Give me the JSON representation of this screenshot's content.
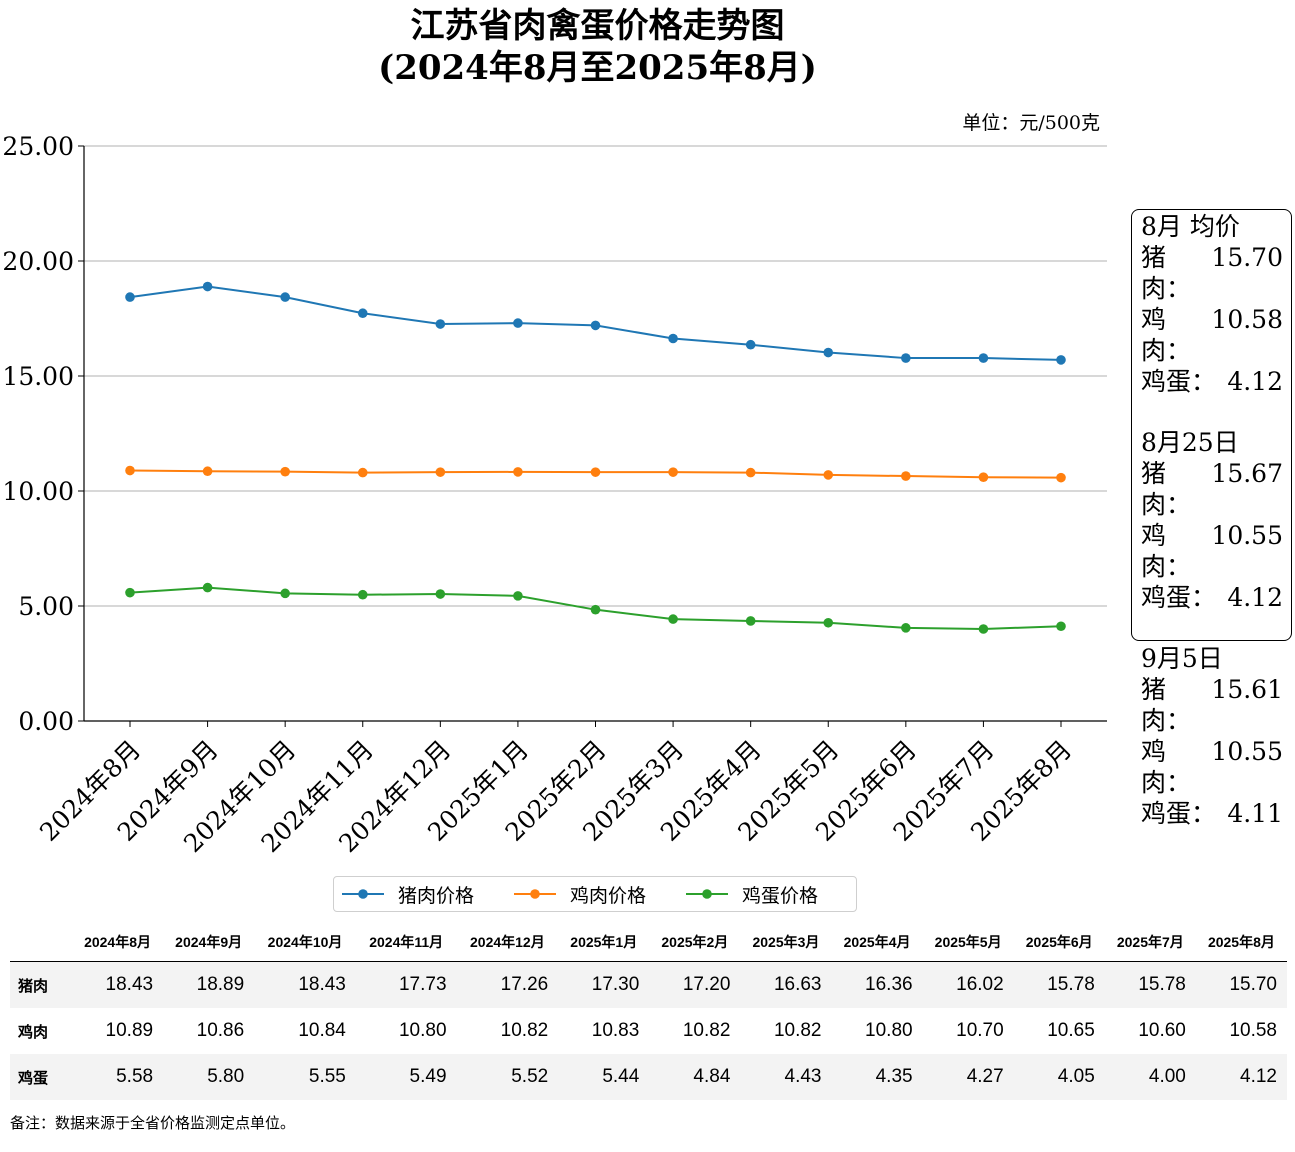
{
  "title_line1": "江苏省肉禽蛋价格走势图",
  "title_line2": "(2024年8月至2025年8月)",
  "unit": "单位：元/500克",
  "chart_data": {
    "type": "line",
    "categories": [
      "2024年8月",
      "2024年9月",
      "2024年10月",
      "2024年11月",
      "2024年12月",
      "2025年1月",
      "2025年2月",
      "2025年3月",
      "2025年4月",
      "2025年5月",
      "2025年6月",
      "2025年7月",
      "2025年8月"
    ],
    "series": [
      {
        "name": "猪肉价格",
        "color": "#1f77b4",
        "values": [
          18.43,
          18.89,
          18.43,
          17.73,
          17.26,
          17.3,
          17.2,
          16.63,
          16.36,
          16.02,
          15.78,
          15.78,
          15.7
        ]
      },
      {
        "name": "鸡肉价格",
        "color": "#ff7f0e",
        "values": [
          10.89,
          10.86,
          10.84,
          10.8,
          10.82,
          10.83,
          10.82,
          10.82,
          10.8,
          10.7,
          10.65,
          10.6,
          10.58
        ]
      },
      {
        "name": "鸡蛋价格",
        "color": "#2ca02c",
        "values": [
          5.58,
          5.8,
          5.55,
          5.49,
          5.52,
          5.44,
          4.84,
          4.43,
          4.35,
          4.27,
          4.05,
          4.0,
          4.12
        ]
      }
    ],
    "ylim": [
      0,
      25
    ],
    "yticks": [
      "0.00",
      "5.00",
      "10.00",
      "15.00",
      "20.00",
      "25.00"
    ],
    "grid": "horizontal",
    "legend_position": "bottom"
  },
  "info_box": [
    {
      "heading": "8月 均价",
      "rows": [
        {
          "label": "猪肉：",
          "value": "15.70"
        },
        {
          "label": "鸡肉：",
          "value": "10.58"
        },
        {
          "label": "鸡蛋：",
          "value": "4.12"
        }
      ]
    },
    {
      "heading": "8月25日",
      "rows": [
        {
          "label": "猪肉：",
          "value": "15.67"
        },
        {
          "label": "鸡肉：",
          "value": "10.55"
        },
        {
          "label": "鸡蛋：",
          "value": "4.12"
        }
      ]
    },
    {
      "heading": "9月5日",
      "rows": [
        {
          "label": "猪肉：",
          "value": "15.61"
        },
        {
          "label": "鸡肉：",
          "value": "10.55"
        },
        {
          "label": "鸡蛋：",
          "value": "4.11"
        }
      ]
    }
  ],
  "table": {
    "columns": [
      "2024年8月",
      "2024年9月",
      "2024年10月",
      "2024年11月",
      "2024年12月",
      "2025年1月",
      "2025年2月",
      "2025年3月",
      "2025年4月",
      "2025年5月",
      "2025年6月",
      "2025年7月",
      "2025年8月"
    ],
    "rows": [
      {
        "label": "猪肉",
        "values": [
          "18.43",
          "18.89",
          "18.43",
          "17.73",
          "17.26",
          "17.30",
          "17.20",
          "16.63",
          "16.36",
          "16.02",
          "15.78",
          "15.78",
          "15.70"
        ]
      },
      {
        "label": "鸡肉",
        "values": [
          "10.89",
          "10.86",
          "10.84",
          "10.80",
          "10.82",
          "10.83",
          "10.82",
          "10.82",
          "10.80",
          "10.70",
          "10.65",
          "10.60",
          "10.58"
        ]
      },
      {
        "label": "鸡蛋",
        "values": [
          "5.58",
          "5.80",
          "5.55",
          "5.49",
          "5.52",
          "5.44",
          "4.84",
          "4.43",
          "4.35",
          "4.27",
          "4.05",
          "4.00",
          "4.12"
        ]
      }
    ]
  },
  "note": "备注：数据来源于全省价格监测定点单位。"
}
